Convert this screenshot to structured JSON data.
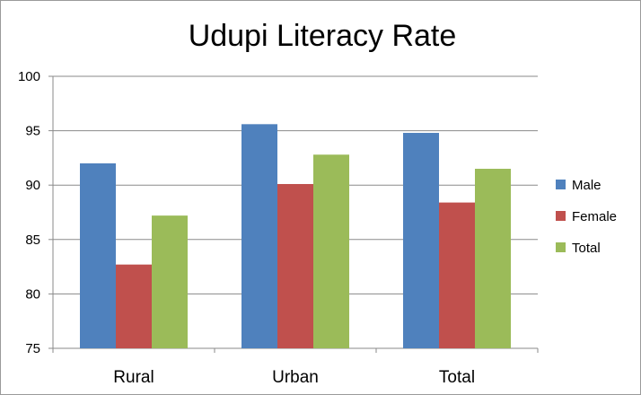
{
  "chart_data": {
    "type": "bar",
    "title": "Udupi Literacy Rate",
    "categories": [
      "Rural",
      "Urban",
      "Total"
    ],
    "series": [
      {
        "name": "Male",
        "color": "#4f81bd",
        "values": [
          92.0,
          95.6,
          94.8
        ]
      },
      {
        "name": "Female",
        "color": "#c0504d",
        "values": [
          82.7,
          90.1,
          88.4
        ]
      },
      {
        "name": "Total",
        "color": "#9bbb59",
        "values": [
          87.2,
          92.8,
          91.5
        ]
      }
    ],
    "xlabel": "",
    "ylabel": "",
    "ylim": [
      75,
      100
    ],
    "yticks": [
      75,
      80,
      85,
      90,
      95,
      100
    ],
    "grid": true,
    "legend_position": "right"
  }
}
